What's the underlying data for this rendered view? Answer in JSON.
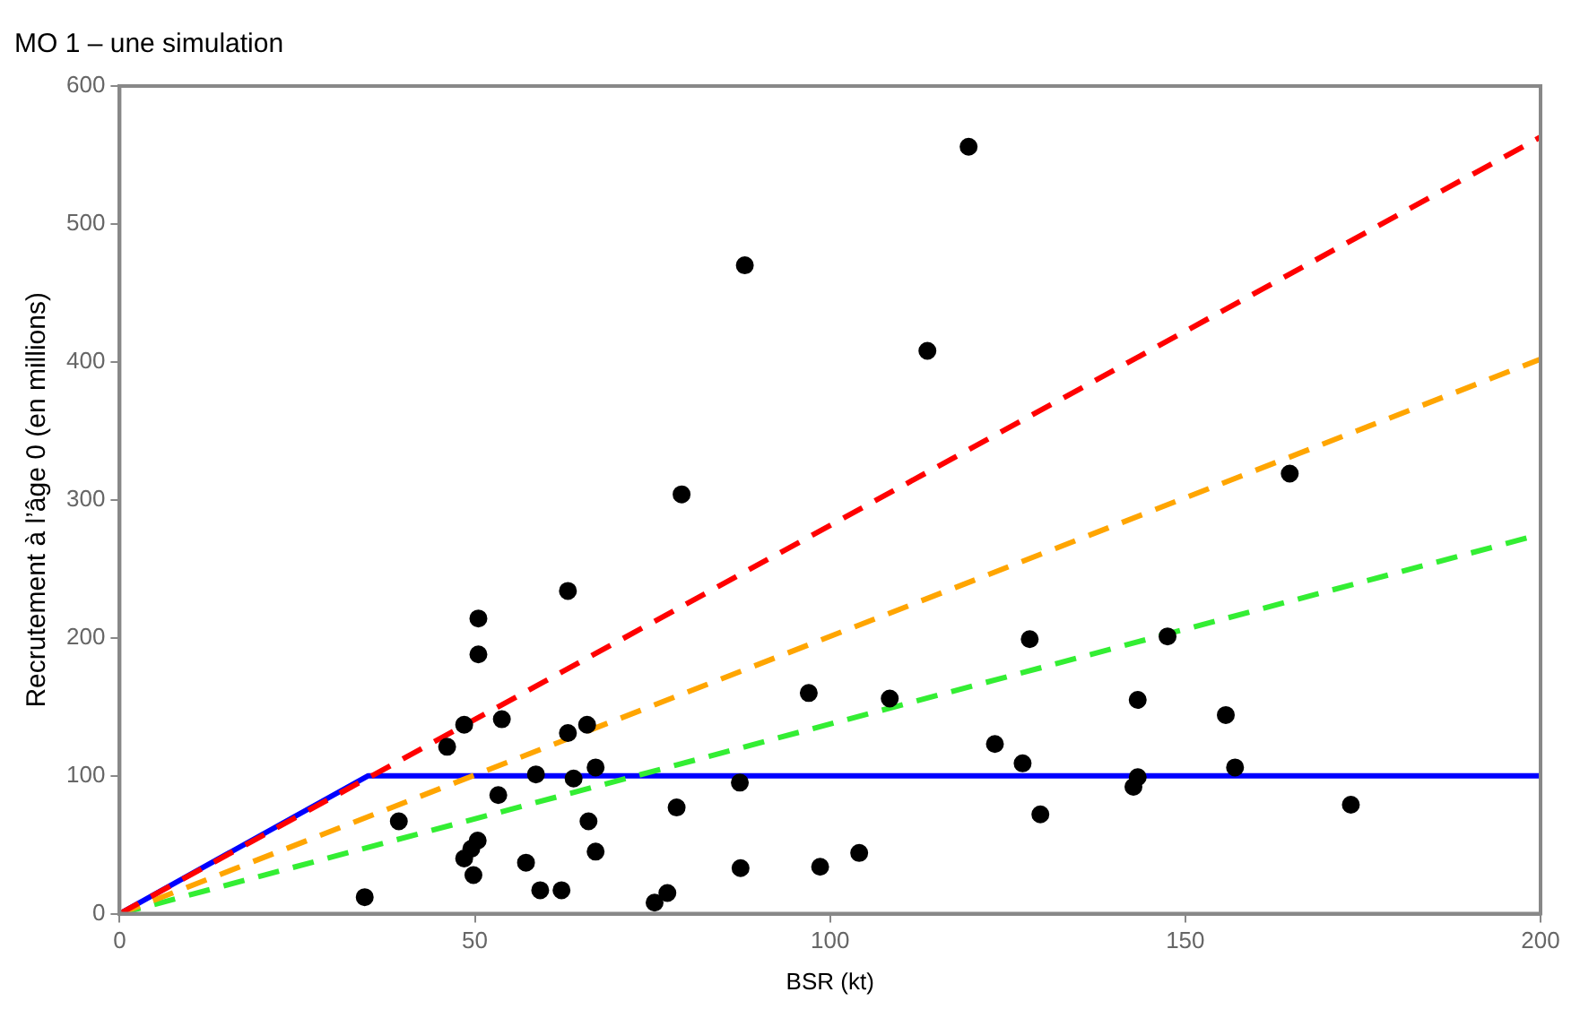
{
  "chart_data": {
    "type": "scatter",
    "title": "MO 1 – une simulation",
    "xlabel": "BSR (kt)",
    "ylabel": "Recrutement à l’âge 0 (en millions)",
    "xlim": [
      0,
      200
    ],
    "xticks": [
      0,
      50,
      100,
      150,
      200
    ],
    "ylim": [
      0,
      600
    ],
    "yticks": [
      0,
      100,
      200,
      300,
      400,
      500,
      600
    ],
    "grid": false,
    "legend": false,
    "series": [
      {
        "type": "line",
        "color": "#ff0000",
        "line_style": "dashed",
        "marker": "none",
        "x": [
          0,
          200
        ],
        "values": [
          0,
          563
        ]
      },
      {
        "type": "line",
        "color": "#ffa500",
        "line_style": "dashed",
        "marker": "none",
        "x": [
          0,
          200
        ],
        "values": [
          0,
          402
        ]
      },
      {
        "type": "line",
        "color": "#33ee33",
        "line_style": "dashed",
        "marker": "none",
        "x": [
          0,
          200
        ],
        "values": [
          0,
          275
        ]
      },
      {
        "type": "line",
        "color": "#0000ff",
        "line_style": "solid",
        "marker": "none",
        "x": [
          0,
          35,
          200
        ],
        "values": [
          0,
          100,
          100
        ]
      },
      {
        "color": "#000000",
        "marker": "circle",
        "x": [
          119.5,
          88,
          113.7,
          79.1,
          164.7,
          63.1,
          50.5,
          50.5,
          48.5,
          53.8,
          46.1,
          63.1,
          65.8,
          58.6,
          63.9,
          67,
          53.3,
          39.3,
          66,
          78.4,
          87.3,
          87.4,
          67,
          57.2,
          50.4,
          49.5,
          48.5,
          49.8,
          59.2,
          62.2,
          34.5,
          75.3,
          77.1,
          128.1,
          147.5,
          97,
          108.4,
          143.3,
          155.7,
          123.2,
          127.1,
          157,
          143.3,
          142.7,
          129.6,
          173.3,
          104.1,
          98.6
        ],
        "values": [
          556,
          470,
          408,
          304,
          319,
          234,
          214,
          188,
          137,
          141,
          121,
          131,
          137,
          101,
          98,
          106,
          86,
          67,
          67,
          77,
          95,
          33,
          45,
          37,
          53,
          47,
          40,
          28,
          17,
          17,
          12,
          8,
          15,
          199,
          201,
          160,
          156,
          155,
          144,
          123,
          109,
          106,
          99,
          92,
          72,
          79,
          44,
          34
        ]
      }
    ]
  }
}
